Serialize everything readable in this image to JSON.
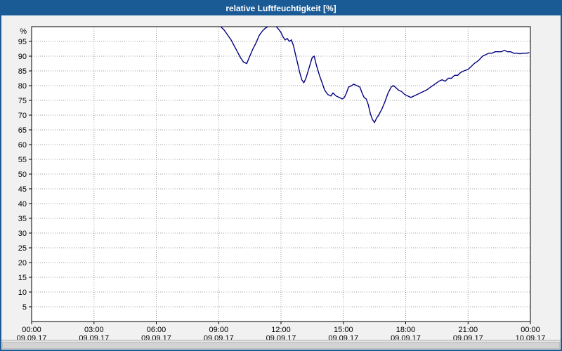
{
  "window": {
    "border_color": "#1A5B96",
    "background": "#F1F1F1"
  },
  "title_bar": {
    "title": "relative Luftfeuchtigkeit [%]",
    "background": "#1A5B96",
    "text_color": "#FFFFFF"
  },
  "chart_data": {
    "type": "line",
    "title": "relative Luftfeuchtigkeit [%]",
    "xlabel": "",
    "ylabel": "%",
    "ylim": [
      0,
      100
    ],
    "yticks": [
      5,
      10,
      15,
      20,
      25,
      30,
      35,
      40,
      45,
      50,
      55,
      60,
      65,
      70,
      75,
      80,
      85,
      90,
      95
    ],
    "xlim_hours": [
      0,
      24
    ],
    "xticks": [
      {
        "hour": 0,
        "time": "00:00",
        "date": "09.09.17"
      },
      {
        "hour": 3,
        "time": "03:00",
        "date": "09.09.17"
      },
      {
        "hour": 6,
        "time": "06:00",
        "date": "09.09.17"
      },
      {
        "hour": 9,
        "time": "09:00",
        "date": "09.09.17"
      },
      {
        "hour": 12,
        "time": "12:00",
        "date": "09.09.17"
      },
      {
        "hour": 15,
        "time": "15:00",
        "date": "09.09.17"
      },
      {
        "hour": 18,
        "time": "18:00",
        "date": "09.09.17"
      },
      {
        "hour": 21,
        "time": "21:00",
        "date": "09.09.17"
      },
      {
        "hour": 24,
        "time": "00:00",
        "date": "10.09.17"
      }
    ],
    "grid": true,
    "grid_style": "dotted",
    "grid_color": "#9C9C9C",
    "plot_background": "#FFFFFF",
    "axis_color": "#000000",
    "legend": "none",
    "series": [
      {
        "name": "relative Luftfeuchtigkeit [%]",
        "color": "#000080",
        "points": [
          [
            9.0,
            100.4
          ],
          [
            9.1,
            100.0
          ],
          [
            9.25,
            99.0
          ],
          [
            9.4,
            97.5
          ],
          [
            9.6,
            95.5
          ],
          [
            9.75,
            93.5
          ],
          [
            9.9,
            91.5
          ],
          [
            10.05,
            89.5
          ],
          [
            10.2,
            88.0
          ],
          [
            10.35,
            87.5
          ],
          [
            10.5,
            90.0
          ],
          [
            10.65,
            92.5
          ],
          [
            10.8,
            94.5
          ],
          [
            10.95,
            97.0
          ],
          [
            11.1,
            98.5
          ],
          [
            11.25,
            99.5
          ],
          [
            11.4,
            100.2
          ],
          [
            11.6,
            100.4
          ],
          [
            11.75,
            100.2
          ],
          [
            11.9,
            99.0
          ],
          [
            12.0,
            98.0
          ],
          [
            12.1,
            96.5
          ],
          [
            12.2,
            95.5
          ],
          [
            12.3,
            96.0
          ],
          [
            12.4,
            95.0
          ],
          [
            12.5,
            95.5
          ],
          [
            12.6,
            93.5
          ],
          [
            12.7,
            90.5
          ],
          [
            12.8,
            87.5
          ],
          [
            12.9,
            84.5
          ],
          [
            13.0,
            82.0
          ],
          [
            13.1,
            81.0
          ],
          [
            13.2,
            82.5
          ],
          [
            13.35,
            86.0
          ],
          [
            13.5,
            89.5
          ],
          [
            13.6,
            90.0
          ],
          [
            13.7,
            87.0
          ],
          [
            13.85,
            83.5
          ],
          [
            14.0,
            80.5
          ],
          [
            14.1,
            78.5
          ],
          [
            14.25,
            77.0
          ],
          [
            14.4,
            76.5
          ],
          [
            14.5,
            77.5
          ],
          [
            14.65,
            76.5
          ],
          [
            14.8,
            76.0
          ],
          [
            14.95,
            75.5
          ],
          [
            15.05,
            76.0
          ],
          [
            15.15,
            77.5
          ],
          [
            15.25,
            79.5
          ],
          [
            15.4,
            80.0
          ],
          [
            15.5,
            80.5
          ],
          [
            15.65,
            80.0
          ],
          [
            15.8,
            79.5
          ],
          [
            15.9,
            77.5
          ],
          [
            16.0,
            76.0
          ],
          [
            16.1,
            75.5
          ],
          [
            16.2,
            73.5
          ],
          [
            16.3,
            70.5
          ],
          [
            16.4,
            68.5
          ],
          [
            16.5,
            67.5
          ],
          [
            16.6,
            69.0
          ],
          [
            16.7,
            70.0
          ],
          [
            16.85,
            72.0
          ],
          [
            17.0,
            74.5
          ],
          [
            17.15,
            77.5
          ],
          [
            17.3,
            79.5
          ],
          [
            17.4,
            80.0
          ],
          [
            17.5,
            79.5
          ],
          [
            17.65,
            78.5
          ],
          [
            17.8,
            78.0
          ],
          [
            17.95,
            77.0
          ],
          [
            18.1,
            76.5
          ],
          [
            18.25,
            76.0
          ],
          [
            18.4,
            76.5
          ],
          [
            18.55,
            77.0
          ],
          [
            18.7,
            77.5
          ],
          [
            18.85,
            78.0
          ],
          [
            19.0,
            78.5
          ],
          [
            19.2,
            79.5
          ],
          [
            19.4,
            80.5
          ],
          [
            19.6,
            81.5
          ],
          [
            19.75,
            82.0
          ],
          [
            19.9,
            81.5
          ],
          [
            20.05,
            82.5
          ],
          [
            20.2,
            82.5
          ],
          [
            20.35,
            83.5
          ],
          [
            20.5,
            83.5
          ],
          [
            20.65,
            84.5
          ],
          [
            20.8,
            85.0
          ],
          [
            21.0,
            85.5
          ],
          [
            21.15,
            86.5
          ],
          [
            21.3,
            87.5
          ],
          [
            21.5,
            88.5
          ],
          [
            21.7,
            90.0
          ],
          [
            21.85,
            90.5
          ],
          [
            22.0,
            91.0
          ],
          [
            22.15,
            91.0
          ],
          [
            22.3,
            91.5
          ],
          [
            22.45,
            91.5
          ],
          [
            22.6,
            91.5
          ],
          [
            22.75,
            92.0
          ],
          [
            22.9,
            91.5
          ],
          [
            23.05,
            91.5
          ],
          [
            23.2,
            91.0
          ],
          [
            23.35,
            91.0
          ],
          [
            23.5,
            90.8
          ],
          [
            23.65,
            91.0
          ],
          [
            23.8,
            91.0
          ],
          [
            23.95,
            91.2
          ]
        ]
      }
    ]
  }
}
